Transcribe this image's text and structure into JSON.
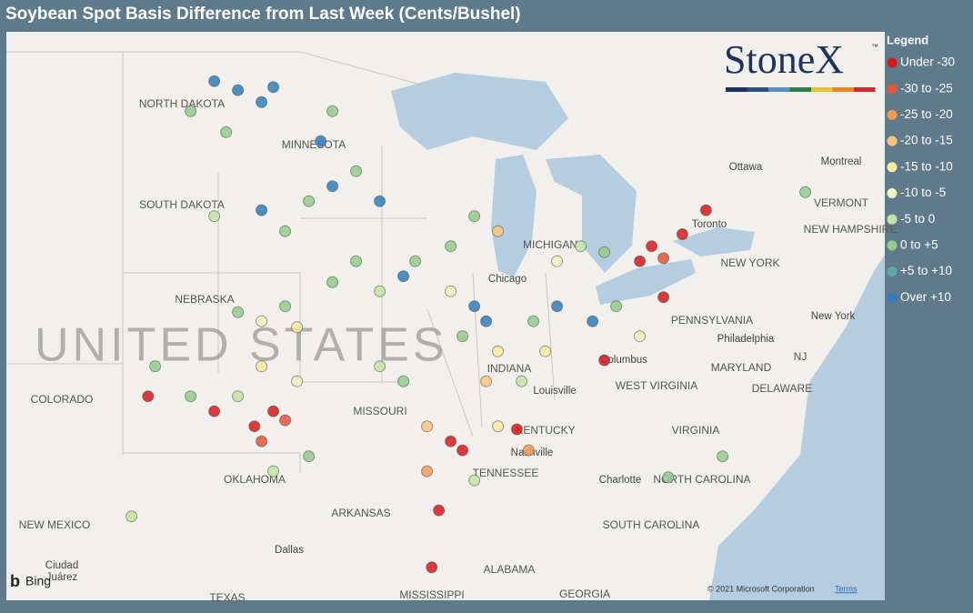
{
  "map": {
    "title": "Soybean Spot Basis Difference from Last Week (Cents/Bushel)",
    "legend": {
      "title": "Legend",
      "classes": [
        {
          "name": "Under -30",
          "color": "#d7191c"
        },
        {
          "name": "-30 to -25",
          "color": "#e6553a"
        },
        {
          "name": "-25 to -20",
          "color": "#f39a55"
        },
        {
          "name": "-20 to -15",
          "color": "#fbc47f"
        },
        {
          "name": "-15 to -10",
          "color": "#fbeaa0"
        },
        {
          "name": "-10 to -5",
          "color": "#eef5be"
        },
        {
          "name": "-5 to 0",
          "color": "#c2e4a4"
        },
        {
          "name": "0 to +5",
          "color": "#93cc8c"
        },
        {
          "name": "+5 to +10",
          "color": "#5ea9a8"
        },
        {
          "name": "Over +10",
          "color": "#2f7ebc"
        }
      ]
    },
    "logo": {
      "text": "StoneX",
      "mark": "™"
    },
    "country_label": "UNITED STATES",
    "labels": [
      "NORTH DAKOTA",
      "MINNESOTA",
      "SOUTH DAKOTA",
      "NEBRASKA",
      "COLORADO",
      "MISSOURI",
      "KENTUCKY",
      "TENNESSEE",
      "ARKANSAS",
      "NEW MEXICO",
      "OKLAHOMA",
      "PENNSYLVANIA",
      "NEW YORK",
      "WEST VIRGINIA",
      "VIRGINIA",
      "NORTH CAROLINA",
      "SOUTH CAROLINA",
      "ALABAMA",
      "MISSISSIPPI",
      "TEXAS",
      "GEORGIA",
      "MARYLAND",
      "DELAWARE",
      "NJ",
      "VERMONT",
      "NEW HAMPSHIRE",
      "INDIANA",
      "MICHIGAN"
    ],
    "cities": [
      "Ottawa",
      "Montreal",
      "Toronto",
      "Chicago",
      "Columbus",
      "Philadelphia",
      "New York",
      "Louisville",
      "Nashville",
      "Charlotte",
      "Dallas",
      "Ciudad",
      "Juárez"
    ],
    "points": [
      [
        -100,
        48.5,
        9
      ],
      [
        -99,
        48.2,
        9
      ],
      [
        -98,
        47.8,
        9
      ],
      [
        -97.5,
        48.3,
        9
      ],
      [
        -101,
        47.5,
        7
      ],
      [
        -99.5,
        46.8,
        7
      ],
      [
        -95.5,
        46.5,
        9
      ],
      [
        -95,
        45,
        9
      ],
      [
        -94,
        45.5,
        7
      ],
      [
        -93,
        44.5,
        9
      ],
      [
        -96,
        44.5,
        7
      ],
      [
        -95,
        47.5,
        7
      ],
      [
        -98,
        44.2,
        9
      ],
      [
        -97,
        43.5,
        7
      ],
      [
        -100,
        44,
        6
      ],
      [
        -94,
        42.5,
        7
      ],
      [
        -92,
        42,
        9
      ],
      [
        -93,
        41.5,
        6
      ],
      [
        -95,
        41.8,
        7
      ],
      [
        -91.5,
        42.5,
        7
      ],
      [
        -97,
        41,
        7
      ],
      [
        -98,
        40.5,
        5
      ],
      [
        -99,
        40.8,
        7
      ],
      [
        -96.5,
        40.3,
        4
      ],
      [
        -98,
        39,
        4
      ],
      [
        -97.5,
        37.5,
        0
      ],
      [
        -98.3,
        37,
        0
      ],
      [
        -97,
        37.2,
        1
      ],
      [
        -99,
        38,
        6
      ],
      [
        -96.5,
        38.5,
        5
      ],
      [
        -101,
        38,
        7
      ],
      [
        -100,
        37.5,
        0
      ],
      [
        -98,
        36.5,
        1
      ],
      [
        -97.5,
        35.5,
        6
      ],
      [
        -96,
        36,
        7
      ],
      [
        -93,
        39,
        6
      ],
      [
        -92,
        38.5,
        7
      ],
      [
        -91,
        37,
        3
      ],
      [
        -90,
        36.5,
        0
      ],
      [
        -89.5,
        36.2,
        0
      ],
      [
        -89,
        41,
        9
      ],
      [
        -88.5,
        40.5,
        9
      ],
      [
        -89.5,
        40,
        7
      ],
      [
        -88,
        39.5,
        4
      ],
      [
        -90,
        41.5,
        5
      ],
      [
        -88.5,
        38.5,
        3
      ],
      [
        -86.5,
        40.5,
        7
      ],
      [
        -86,
        39.5,
        4
      ],
      [
        -87,
        38.5,
        6
      ],
      [
        -85.5,
        41,
        9
      ],
      [
        -84,
        40.5,
        9
      ],
      [
        -83,
        41,
        7
      ],
      [
        -82,
        40,
        5
      ],
      [
        -83.5,
        39.2,
        0
      ],
      [
        -81,
        41.3,
        0
      ],
      [
        -84.5,
        43,
        6
      ],
      [
        -83.5,
        42.8,
        7
      ],
      [
        -85.5,
        42.5,
        5
      ],
      [
        -90,
        43,
        7
      ],
      [
        -89,
        44,
        7
      ],
      [
        -88,
        43.5,
        3
      ],
      [
        -81.5,
        43,
        0
      ],
      [
        -80.2,
        43.4,
        0
      ],
      [
        -81,
        42.6,
        1
      ],
      [
        -79.2,
        44.2,
        0
      ],
      [
        -82,
        42.5,
        0
      ],
      [
        -86.7,
        36.2,
        2
      ],
      [
        -88,
        37,
        4
      ],
      [
        -87.2,
        36.9,
        0
      ],
      [
        -89,
        35.2,
        6
      ],
      [
        -91,
        35.5,
        2
      ],
      [
        -90.5,
        34.2,
        0
      ],
      [
        -90.8,
        32.3,
        0
      ],
      [
        -78.5,
        36,
        7
      ],
      [
        -80.8,
        35.3,
        7
      ],
      [
        -75,
        44.8,
        7
      ],
      [
        -102.5,
        39,
        7
      ],
      [
        -102.8,
        38,
        0
      ],
      [
        -103.5,
        34,
        6
      ]
    ],
    "credits": {
      "copyright": "© 2021 Microsoft Corporation",
      "terms": "Terms",
      "provider": "Bing"
    }
  }
}
